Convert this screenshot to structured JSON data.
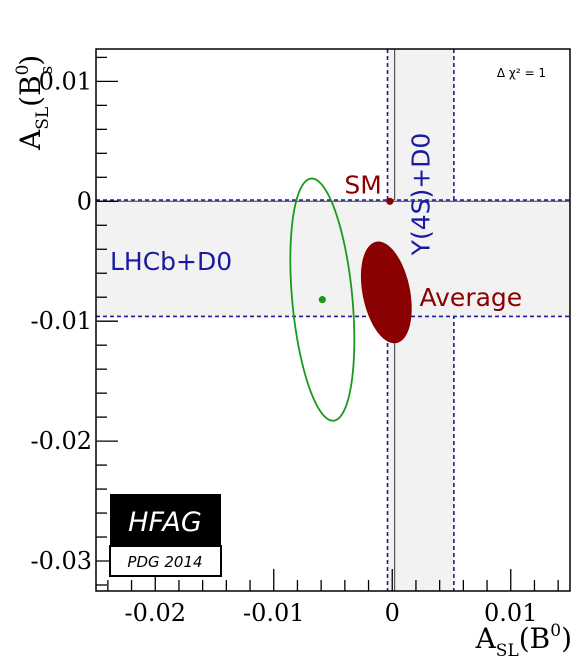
{
  "chart_data": {
    "type": "scatter",
    "title": "",
    "xlabel": {
      "main": "A",
      "sub": "SL",
      "paren": "(B",
      "sup": "0",
      "close": ")"
    },
    "ylabel": {
      "main": "A",
      "sub": "SL",
      "paren": "(B",
      "sup": "0",
      "supsub": "s",
      "close": ")"
    },
    "xlim": [
      -0.025,
      0.015
    ],
    "ylim": [
      -0.0325,
      0.0127
    ],
    "x_ticks": [
      -0.02,
      -0.01,
      0,
      0.01
    ],
    "x_tick_labels": [
      "-0.02",
      "-0.01",
      "0",
      "0.01"
    ],
    "y_ticks": [
      -0.03,
      -0.02,
      -0.01,
      0,
      0.01
    ],
    "y_tick_labels": [
      "-0.03",
      "-0.02",
      "-0.01",
      "0",
      "0.01"
    ],
    "delta_chi2_label": "Δ χ² = 1",
    "bands": [
      {
        "name": "Y(4S)+D0",
        "axis": "x",
        "center": 0.0002,
        "low": -0.0004,
        "high": 0.0052,
        "color": "#1a1aa0"
      },
      {
        "name": "LHCb+D0",
        "axis": "y",
        "center": 0.0,
        "low": -0.0096,
        "high": 0.0001,
        "color": "#1a1aa0"
      }
    ],
    "points": [
      {
        "name": "SM",
        "x": -0.0002,
        "y": 0.0,
        "color": "#8b0000"
      },
      {
        "name": "",
        "x": -0.0059,
        "y": -0.0082,
        "color": "#1a9a1a"
      }
    ],
    "ellipses": [
      {
        "name": "",
        "kind": "contour",
        "cx": -0.0059,
        "cy": -0.0082,
        "sx": 0.0027,
        "sy": 0.0101,
        "rho": -0.33,
        "color": "#1a9a1a"
      },
      {
        "name": "Average",
        "kind": "filled",
        "cx": -0.0005,
        "cy": -0.0076,
        "sx": 0.0021,
        "sy": 0.0042,
        "rho": -0.32,
        "color": "#8b0000"
      }
    ],
    "legend": {
      "line1": "HFAG",
      "line2": "PDG 2014",
      "placement": "bottom-left"
    },
    "grid": false
  }
}
